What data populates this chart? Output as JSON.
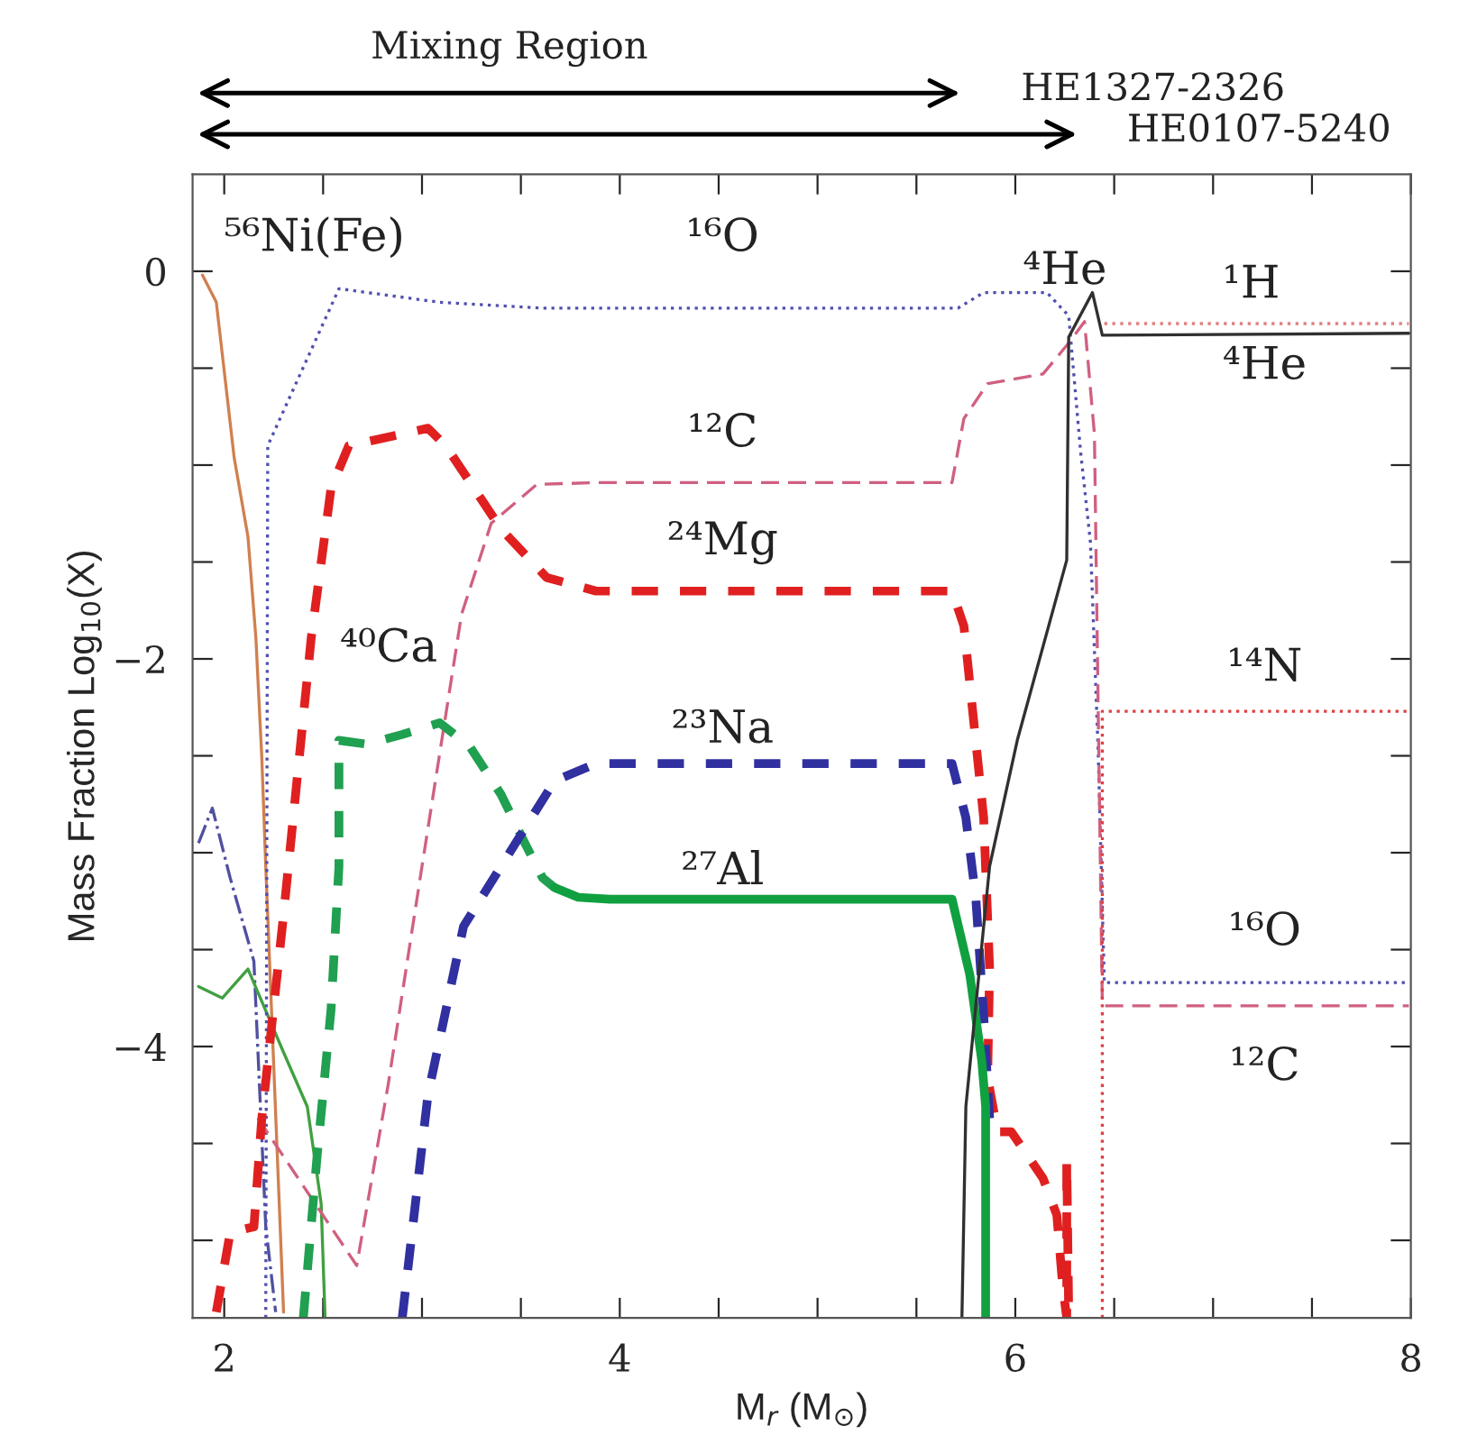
{
  "chart_data": {
    "type": "line",
    "xlabel": "M$_{r}$ (M$_{⊙}$)",
    "ylabel": "Mass Fraction Log$_{10}$(X)",
    "xlim": [
      1.84,
      8.0
    ],
    "ylim": [
      -5.4,
      0.5
    ],
    "xticks": [
      2,
      {
        "value": 2.5,
        "label": null
      },
      {
        "value": 3,
        "label": null
      },
      {
        "value": 3.5,
        "label": null
      },
      4,
      {
        "value": 4.5,
        "label": null
      },
      {
        "value": 5,
        "label": null
      },
      {
        "value": 5.5,
        "label": null
      },
      6,
      {
        "value": 6.5,
        "label": null
      },
      {
        "value": 7,
        "label": null
      },
      {
        "value": 7.5,
        "label": null
      },
      8
    ],
    "yticks": [
      {
        "value": -5,
        "label": null
      },
      {
        "value": -4.5,
        "label": null
      },
      {
        "value": -4,
        "label": "−4"
      },
      {
        "value": -3.5,
        "label": null
      },
      {
        "value": -3,
        "label": null
      },
      {
        "value": -2.5,
        "label": null
      },
      {
        "value": -2,
        "label": "−2"
      },
      {
        "value": -1.5,
        "label": null
      },
      {
        "value": -1,
        "label": null
      },
      {
        "value": -0.5,
        "label": null
      },
      0
    ],
    "grid": false,
    "legend": false,
    "series": [
      {
        "color": "#d08050",
        "line_style": "solid",
        "x": [
          1.89,
          1.96,
          2.05,
          2.12,
          2.16,
          2.19,
          2.21,
          2.3
        ],
        "values": [
          -0.02,
          -0.16,
          -0.96,
          -1.37,
          -1.89,
          -2.51,
          -3.07,
          -5.37
        ]
      },
      {
        "color": "#5050a0",
        "line_style": "dashdot",
        "x": [
          1.87,
          1.94,
          2.03,
          2.15,
          2.21,
          2.26
        ],
        "values": [
          -2.95,
          -2.77,
          -3.13,
          -3.56,
          -4.93,
          -5.37
        ]
      },
      {
        "color": "#40a040",
        "line_style": "solid",
        "x": [
          1.87,
          1.99,
          2.12,
          2.3,
          2.42,
          2.49,
          2.51
        ],
        "values": [
          -3.69,
          -3.75,
          -3.6,
          -4.03,
          -4.31,
          -4.81,
          -5.4
        ]
      },
      {
        "color": "#5050b0",
        "line_style": "dotted",
        "x": [
          2.21,
          2.22,
          2.58,
          3.09,
          3.61,
          5.71,
          5.84,
          6.16,
          6.27,
          6.33,
          6.38,
          6.42,
          6.45,
          7.99
        ],
        "values": [
          -5.4,
          -0.9,
          -0.09,
          -0.16,
          -0.19,
          -0.19,
          -0.11,
          -0.11,
          -0.23,
          -0.93,
          -1.4,
          -2.51,
          -3.67,
          -3.67
        ]
      },
      {
        "color": "#d06080",
        "line_style": "dashed",
        "x": [
          2.17,
          2.67,
          2.83,
          3.0,
          3.2,
          3.35,
          3.58,
          3.88,
          5.68,
          5.74,
          5.86,
          6.14,
          6.27,
          6.35,
          6.4,
          6.42,
          6.44,
          7.99
        ],
        "values": [
          -4.37,
          -5.13,
          -4.19,
          -3.07,
          -1.77,
          -1.3,
          -1.1,
          -1.09,
          -1.09,
          -0.76,
          -0.58,
          -0.53,
          -0.37,
          -0.26,
          -0.84,
          -2.33,
          -3.79,
          -3.79
        ]
      },
      {
        "color": "#e02020",
        "line_style": "dashed",
        "x": [
          1.96,
          2.03,
          2.15,
          2.19,
          2.3,
          2.44,
          2.54,
          2.63,
          3.03,
          3.12,
          3.4,
          3.63,
          3.88,
          5.68,
          5.74,
          5.84,
          5.87,
          5.86,
          5.91,
          5.98,
          6.14,
          6.21,
          6.24,
          6.26,
          6.26,
          6.27
        ],
        "values": [
          -5.37,
          -4.96,
          -4.93,
          -4.37,
          -3.32,
          -1.89,
          -1.12,
          -0.9,
          -0.81,
          -0.9,
          -1.33,
          -1.58,
          -1.65,
          -1.65,
          -1.83,
          -2.82,
          -3.6,
          -4.16,
          -4.44,
          -4.44,
          -4.68,
          -4.87,
          -5.24,
          -5.4,
          -4.59,
          -5.38
        ]
      },
      {
        "color": "#20a050",
        "line_style": "dashed",
        "x": [
          2.4,
          2.47,
          2.54,
          2.58,
          2.58,
          2.72,
          2.9,
          3.09,
          3.24,
          3.4,
          3.52,
          3.61,
          3.67
        ],
        "values": [
          -5.4,
          -4.56,
          -3.81,
          -3.07,
          -2.42,
          -2.44,
          -2.39,
          -2.33,
          -2.45,
          -2.7,
          -2.95,
          -3.13,
          -3.18
        ]
      },
      {
        "color": "#3030a0",
        "line_style": "dashed",
        "x": [
          2.9,
          3.03,
          3.21,
          3.4,
          3.67,
          3.88,
          5.68,
          5.75,
          5.8,
          5.84,
          5.87
        ],
        "values": [
          -5.4,
          -4.25,
          -3.38,
          -3.07,
          -2.63,
          -2.54,
          -2.54,
          -2.82,
          -3.23,
          -3.84,
          -4.37
        ]
      },
      {
        "color": "#10a040",
        "line_style": "solid",
        "x": [
          3.67,
          3.79,
          3.95,
          5.68,
          5.77,
          5.83,
          5.85,
          5.85
        ],
        "values": [
          -3.18,
          -3.23,
          -3.24,
          -3.24,
          -3.63,
          -4.07,
          -4.31,
          -5.4
        ]
      },
      {
        "color": "#303030",
        "line_style": "solid",
        "x": [
          5.73,
          5.75,
          5.87,
          6.01,
          6.26,
          6.27,
          6.39,
          6.44,
          7.99
        ],
        "values": [
          -5.4,
          -4.31,
          -3.07,
          -2.42,
          -1.49,
          -0.34,
          -0.11,
          -0.33,
          -0.32
        ]
      },
      {
        "color": "#e04040",
        "line_style": "dotted",
        "x": [
          6.44,
          6.44,
          7.99
        ],
        "values": [
          -5.4,
          -2.27,
          -2.27
        ]
      },
      {
        "color": "#e08080",
        "line_style": "dotted",
        "x": [
          6.45,
          7.99
        ],
        "values": [
          -0.27,
          -0.27
        ]
      }
    ],
    "annotations": [
      "Mixing Region",
      "HE1327-2326",
      "HE0107-5240",
      "⁵⁶Ni(Fe)",
      "¹⁶O",
      "⁴He",
      "¹H",
      "⁴He",
      "¹²C",
      "²⁴Mg",
      "⁴⁰Ca",
      "¹⁴N",
      "²³Na",
      "²⁷Al",
      "¹⁶O",
      "¹²C"
    ]
  }
}
